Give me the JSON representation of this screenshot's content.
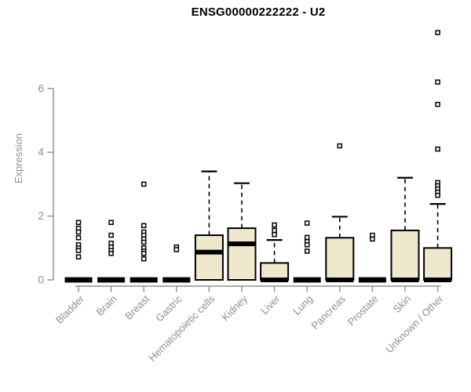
{
  "chart_data": {
    "type": "boxplot",
    "title": "ENSG00000222222 - U2",
    "ylabel": "Expression",
    "xlabel": "",
    "yticks": [
      0,
      2,
      4,
      6
    ],
    "ylim": [
      0,
      7.9
    ],
    "grid": false,
    "legend": "none",
    "colors": {
      "box_fill": "#F0E8CD",
      "box_stroke": "#000000",
      "axis": "#8f8f8f",
      "tick_text": "#8f8f8f",
      "title_text": "#000000"
    },
    "categories": [
      "Bladder",
      "Brain",
      "Breast",
      "Gastric",
      "Hematopoietic cells",
      "Kidney",
      "Liver",
      "Lung",
      "Pancreas",
      "Prostate",
      "Skin",
      "Unknown / Other"
    ],
    "boxes": [
      {
        "category": "Bladder",
        "q1": 0,
        "median": 0,
        "q3": 0,
        "whisker_low": 0,
        "whisker_high": 0,
        "outliers": [
          1.8,
          1.62,
          1.5,
          1.32,
          1.1,
          1.0,
          0.92,
          0.72
        ]
      },
      {
        "category": "Brain",
        "q1": 0,
        "median": 0,
        "q3": 0,
        "whisker_low": 0,
        "whisker_high": 0,
        "outliers": [
          1.8,
          1.4,
          1.15,
          1.03,
          0.92,
          0.83
        ]
      },
      {
        "category": "Breast",
        "q1": 0,
        "median": 0,
        "q3": 0,
        "whisker_low": 0,
        "whisker_high": 0,
        "outliers": [
          3.0,
          1.7,
          1.5,
          1.4,
          1.28,
          1.18,
          1.0,
          0.9,
          0.83,
          0.66
        ]
      },
      {
        "category": "Gastric",
        "q1": 0,
        "median": 0,
        "q3": 0,
        "whisker_low": 0,
        "whisker_high": 0,
        "outliers": [
          1.03,
          0.95
        ]
      },
      {
        "category": "Hematopoietic cells",
        "q1": 0,
        "median": 0.87,
        "q3": 1.4,
        "whisker_low": 0,
        "whisker_high": 3.4,
        "outliers": []
      },
      {
        "category": "Kidney",
        "q1": 0,
        "median": 1.13,
        "q3": 1.62,
        "whisker_low": 0,
        "whisker_high": 3.03,
        "outliers": []
      },
      {
        "category": "Liver",
        "q1": 0,
        "median": 0,
        "q3": 0.53,
        "whisker_low": 0,
        "whisker_high": 1.25,
        "outliers": [
          1.72,
          1.55,
          1.42
        ]
      },
      {
        "category": "Lung",
        "q1": 0,
        "median": 0,
        "q3": 0,
        "whisker_low": 0,
        "whisker_high": 0,
        "outliers": [
          1.78,
          1.33,
          1.2,
          1.1,
          0.9
        ]
      },
      {
        "category": "Pancreas",
        "q1": 0,
        "median": 0,
        "q3": 1.32,
        "whisker_low": 0,
        "whisker_high": 1.98,
        "outliers": [
          4.2
        ]
      },
      {
        "category": "Prostate",
        "q1": 0,
        "median": 0,
        "q3": 0,
        "whisker_low": 0,
        "whisker_high": 0,
        "outliers": [
          1.4,
          1.28
        ]
      },
      {
        "category": "Skin",
        "q1": 0,
        "median": 0,
        "q3": 1.55,
        "whisker_low": 0,
        "whisker_high": 3.2,
        "outliers": []
      },
      {
        "category": "Unknown / Other",
        "q1": 0,
        "median": 0,
        "q3": 1.0,
        "whisker_low": 0,
        "whisker_high": 2.38,
        "outliers": [
          7.75,
          6.2,
          5.5,
          4.1,
          3.05,
          2.95,
          2.85,
          2.75,
          2.65
        ]
      }
    ]
  }
}
